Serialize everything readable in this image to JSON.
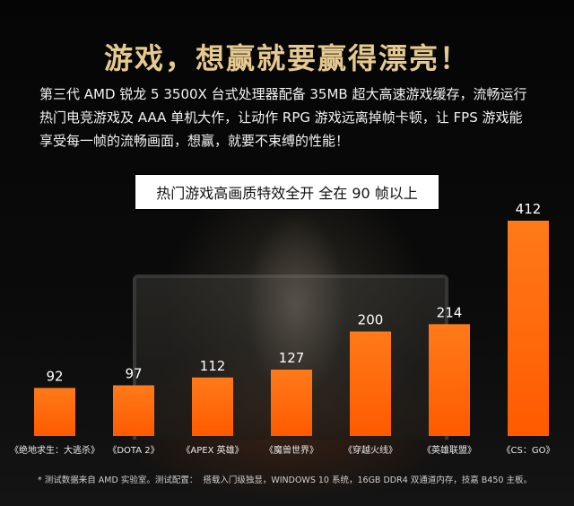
{
  "headline": "游戏，想赢就要赢得漂亮！",
  "description": {
    "line1": "第三代 AMD 锐龙 5 3500X 台式处理器配备 35MB 超大高速游戏缓存，流畅运行",
    "line2": "热门电竞游戏及 AAA 单机大作，让动作 RPG 游戏远离掉帧卡顿，让 FPS 游戏能",
    "line3": "享受每一帧的流畅画面，想赢，就要不束缚的性能！"
  },
  "banner": "热门游戏高画质特效全开 全在 90 帧以上",
  "chart_data": {
    "type": "bar",
    "categories": [
      "《绝地求生：大逃杀》",
      "《DOTA 2》",
      "《APEX 英雄》",
      "《魔兽世界》",
      "《穿越火线》",
      "《英雄联盟》",
      "《CS：GO》"
    ],
    "values": [
      92,
      97,
      112,
      127,
      200,
      214,
      412
    ],
    "value_labels": [
      "92",
      "97",
      "112",
      "127",
      "200",
      "214",
      "412"
    ],
    "bar_color": "#ff5a00",
    "bar_color_top": "#ff7a1a",
    "ylim": [
      0,
      412
    ]
  },
  "footnote": {
    "part1": "* 测试数据来自 AMD 实验室。测试配置：",
    "part2": "搭载入门级独显，WINDOWS 10 系统，16GB DDR4 双通道内存，技嘉 B450 主板。"
  },
  "colors": {
    "headline": "#e6c98f",
    "background": "#070707",
    "banner_bg": "#ffffff"
  }
}
